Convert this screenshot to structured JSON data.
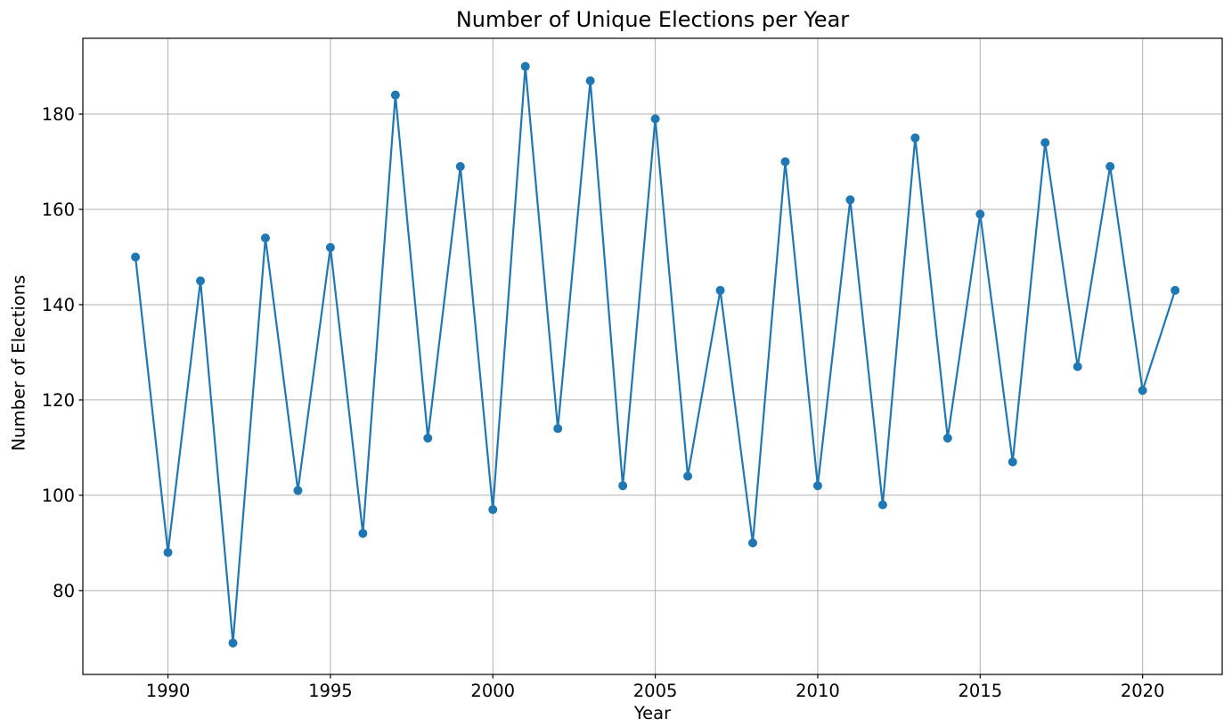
{
  "chart_data": {
    "type": "line",
    "title": "Number of Unique Elections per Year",
    "xlabel": "Year",
    "ylabel": "Number of Elections",
    "x": [
      1989,
      1990,
      1991,
      1992,
      1993,
      1994,
      1995,
      1996,
      1997,
      1998,
      1999,
      2000,
      2001,
      2002,
      2003,
      2004,
      2005,
      2006,
      2007,
      2008,
      2009,
      2010,
      2011,
      2012,
      2013,
      2014,
      2015,
      2016,
      2017,
      2018,
      2019,
      2020,
      2021
    ],
    "y": [
      150,
      88,
      145,
      69,
      154,
      101,
      152,
      92,
      184,
      112,
      169,
      97,
      190,
      114,
      187,
      102,
      179,
      104,
      143,
      90,
      170,
      102,
      162,
      98,
      175,
      112,
      159,
      107,
      174,
      127,
      169,
      122,
      143
    ],
    "x_ticks": [
      1990,
      1995,
      2000,
      2005,
      2010,
      2015,
      2020
    ],
    "y_ticks": [
      80,
      100,
      120,
      140,
      160,
      180
    ],
    "xlim": [
      1987.38,
      2022.45
    ],
    "ylim": [
      62.4,
      195.9
    ],
    "grid": true,
    "legend_position": "none",
    "line_color": "#1f77b4",
    "marker": "circle",
    "marker_color": "#1f77b4",
    "grid_color": "#b0b0b0",
    "spine_color": "#000000",
    "tick_label_color": "#000000",
    "background_color": "#ffffff"
  }
}
